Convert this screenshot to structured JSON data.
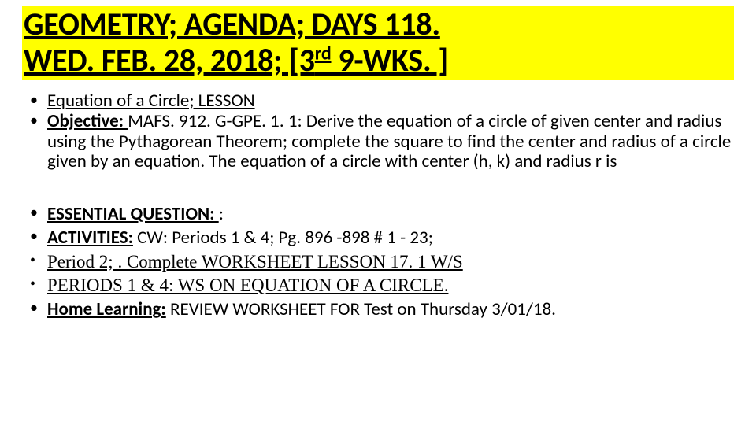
{
  "colors": {
    "highlight_bg": "#ffff00",
    "text": "#000000",
    "page_bg": "#ffffff"
  },
  "typography": {
    "title_fontsize": 40,
    "body_fontsize": 23,
    "title_weight": 700,
    "superscript": "rd"
  },
  "title": {
    "line1": "GEOMETRY; AGENDA; DAYS 118.",
    "line2_before_sup": "WED.  FEB. 28,  2018; [3",
    "line2_sup": "rd",
    "line2_after_sup": "  9-WKS. ]"
  },
  "block1": {
    "item0": {
      "label": "Equation of a Circle; LESSON"
    },
    "item1": {
      "label": " Objective: ",
      "text": " MAFS. 912. G-GPE. 1. 1: Derive the equation of a circle of given center and radius using the Pythagorean Theorem; complete the square to find the center and radius of a circle given by an equation. The equation of a circle with center (h, k) and radius r is"
    }
  },
  "block2": {
    "item0": {
      "label": "ESSENTIAL QUESTION: ",
      "text": ": "
    },
    "item1": {
      "label": "ACTIVITIES:",
      "text": " CW: Periods 1 & 4; Pg. 896 -898 # 1 - 23; "
    },
    "item2": {
      "label": "Period 2; . Complete WORKSHEET LESSON 17. 1 W/S    "
    },
    "item3": {
      "label": "PERIODS 1 & 4: WS ON EQUATION OF A CIRCLE. "
    },
    "item4": {
      "label": "Home Learning:",
      "text": " REVIEW WORKSHEET FOR Test on Thursday 3/01/18."
    }
  }
}
